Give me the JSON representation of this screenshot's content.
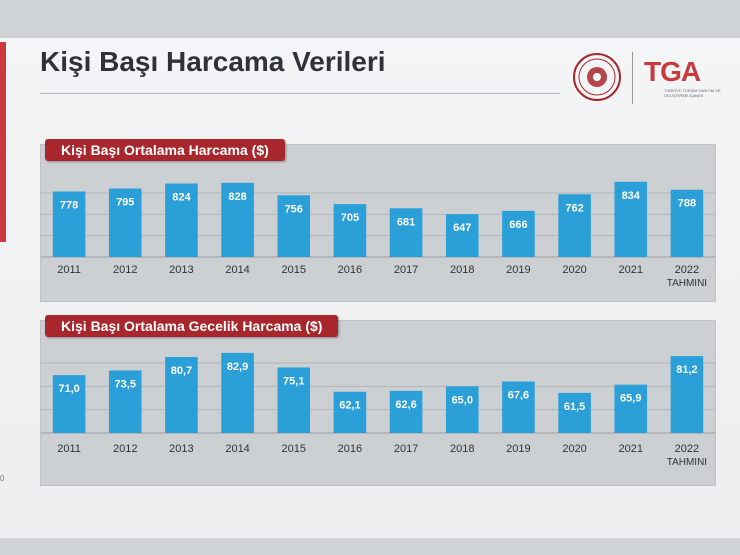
{
  "page": {
    "title": "Kişi Başı Harcama Verileri",
    "logo_text": "TGA",
    "logo_subtext": "TÜRKİYE TURİZM TANITIM VE GELİŞTİRME AJANSI",
    "page_number": "0",
    "colors": {
      "bar": "#2a9fd8",
      "label": "#a8272d",
      "accent": "#c9393d"
    }
  },
  "chart_data": [
    {
      "type": "bar",
      "title": "Kişi Başı Ortalama Harcama ($)",
      "categories": [
        "2011",
        "2012",
        "2013",
        "2014",
        "2015",
        "2016",
        "2017",
        "2018",
        "2019",
        "2020",
        "2021",
        "2022"
      ],
      "category_sublabels": [
        "",
        "",
        "",
        "",
        "",
        "",
        "",
        "",
        "",
        "",
        "",
        "TAHMINI"
      ],
      "values": [
        778,
        795,
        824,
        828,
        756,
        705,
        681,
        647,
        666,
        762,
        834,
        788
      ],
      "value_labels": [
        "778",
        "795",
        "824",
        "828",
        "756",
        "705",
        "681",
        "647",
        "666",
        "762",
        "834",
        "788"
      ],
      "ylim": [
        400,
        850
      ],
      "grid": true
    },
    {
      "type": "bar",
      "title": "Kişi Başı Ortalama Gecelik Harcama ($)",
      "categories": [
        "2011",
        "2012",
        "2013",
        "2014",
        "2015",
        "2016",
        "2017",
        "2018",
        "2019",
        "2020",
        "2021",
        "2022"
      ],
      "category_sublabels": [
        "",
        "",
        "",
        "",
        "",
        "",
        "",
        "",
        "",
        "",
        "",
        "TAHMINI"
      ],
      "values": [
        71.0,
        73.5,
        80.7,
        82.9,
        75.1,
        62.1,
        62.6,
        65.0,
        67.6,
        61.5,
        65.9,
        81.2
      ],
      "value_labels": [
        "71,0",
        "73,5",
        "80,7",
        "82,9",
        "75,1",
        "62,1",
        "62,6",
        "65,0",
        "67,6",
        "61,5",
        "65,9",
        "81,2"
      ],
      "ylim": [
        40,
        85
      ],
      "grid": true
    }
  ]
}
